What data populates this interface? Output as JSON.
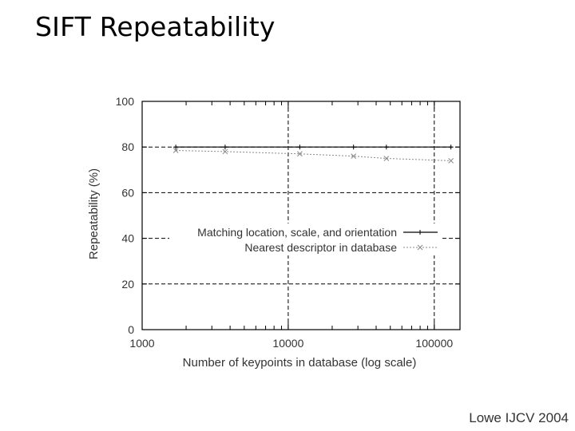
{
  "slide": {
    "title": "SIFT Repeatability",
    "citation": "Lowe IJCV 2004"
  },
  "chart_data": {
    "type": "line",
    "xlabel": "Number of keypoints in database (log scale)",
    "ylabel": "Repeatability (%)",
    "x_scale": "log",
    "xlim": [
      1000,
      150000
    ],
    "ylim": [
      0,
      100
    ],
    "x_ticks": [
      {
        "value": 1000,
        "label": "1000"
      },
      {
        "value": 10000,
        "label": "10000"
      },
      {
        "value": 100000,
        "label": "100000"
      }
    ],
    "y_ticks": [
      {
        "value": 0,
        "label": "0"
      },
      {
        "value": 20,
        "label": "20"
      },
      {
        "value": 40,
        "label": "40"
      },
      {
        "value": 60,
        "label": "60"
      },
      {
        "value": 80,
        "label": "80"
      },
      {
        "value": 100,
        "label": "100"
      }
    ],
    "grid": true,
    "legend_position": "center-right",
    "series": [
      {
        "name": "Matching location, scale, and orientation",
        "marker": "+",
        "style": "solid",
        "color": "#000000",
        "x": [
          1700,
          3700,
          12000,
          28000,
          47000,
          130000
        ],
        "y": [
          80,
          80,
          80,
          80,
          80,
          80
        ]
      },
      {
        "name": "Nearest descriptor in database",
        "marker": "x",
        "style": "dotted",
        "color": "#888888",
        "x": [
          1700,
          3700,
          12000,
          28000,
          47000,
          130000
        ],
        "y": [
          78.5,
          78,
          77,
          76,
          75,
          74
        ]
      }
    ]
  }
}
